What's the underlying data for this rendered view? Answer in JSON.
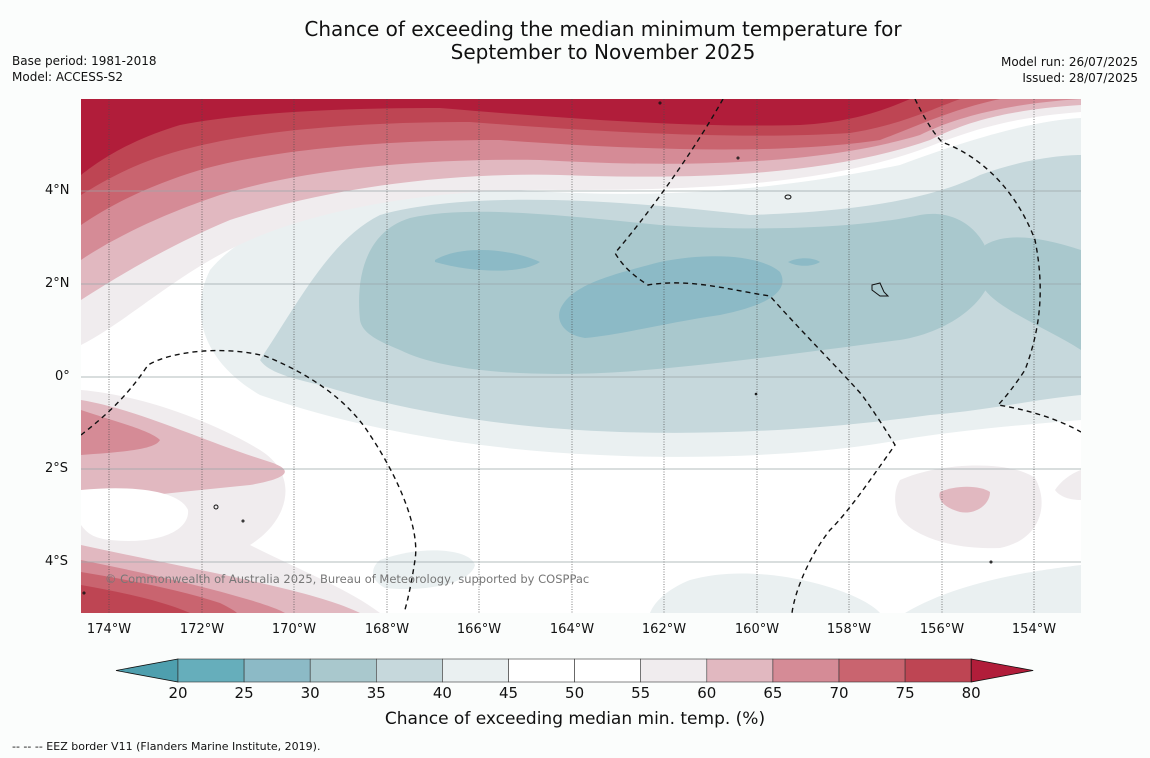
{
  "title": {
    "line1": "Chance of exceeding the median minimum temperature for",
    "line2": "September to November 2025"
  },
  "meta": {
    "base_period": "Base period: 1981-2018",
    "model": "Model: ACCESS-S2",
    "model_run": "Model run: 26/07/2025",
    "issued": "Issued: 28/07/2025"
  },
  "map": {
    "lat_labels": [
      "4°N",
      "2°N",
      "0°",
      "2°S",
      "4°S"
    ],
    "lon_labels": [
      "174°W",
      "172°W",
      "170°W",
      "168°W",
      "166°W",
      "164°W",
      "162°W",
      "160°W",
      "158°W",
      "156°W",
      "154°W"
    ],
    "copyright": "© Commonwealth of Australia 2025, Bureau of Meteorology, supported by COSPPac"
  },
  "colorbar": {
    "ticks": [
      "20",
      "25",
      "30",
      "35",
      "40",
      "45",
      "50",
      "55",
      "60",
      "65",
      "70",
      "75",
      "80"
    ],
    "colors": [
      "#4e9fae",
      "#66aebb",
      "#8cbac6",
      "#a9c8cd",
      "#c6d8dc",
      "#eaf0f1",
      "#ffffff",
      "#ffffff",
      "#f0ecee",
      "#e1b8c0",
      "#d58b96",
      "#c9646f",
      "#be4553",
      "#b11d3a"
    ],
    "label": "Chance of exceeding median min. temp. (%)"
  },
  "footer": "--  --  -- EEZ border V11 (Flanders Marine Institute, 2019)."
}
